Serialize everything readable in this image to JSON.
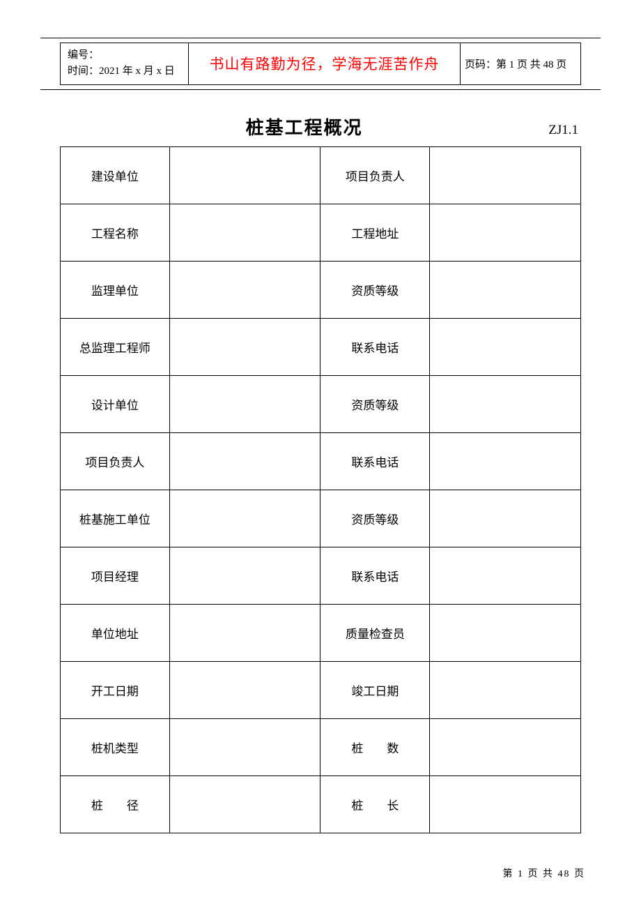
{
  "header": {
    "serial_label": "编号：",
    "time_label": "时间：2021 年 x 月 x 日",
    "motto": "书山有路勤为径，学海无涯苦作舟",
    "page_label": "页码：第 1 页  共 48 页"
  },
  "title": {
    "text": "桩基工程概况",
    "code": "ZJ1.1"
  },
  "table": {
    "rows": [
      {
        "left": "建设单位",
        "right": "项目负责人"
      },
      {
        "left": "工程名称",
        "right": "工程地址"
      },
      {
        "left": "监理单位",
        "right": "资质等级"
      },
      {
        "left": "总监理工程师",
        "right": "联系电话"
      },
      {
        "left": "设计单位",
        "right": "资质等级"
      },
      {
        "left": "项目负责人",
        "right": "联系电话"
      },
      {
        "left": "桩基施工单位",
        "right": "资质等级"
      },
      {
        "left": "项目经理",
        "right": "联系电话"
      },
      {
        "left": "单位地址",
        "right": "质量检查员"
      },
      {
        "left": "开工日期",
        "right": "竣工日期"
      },
      {
        "left": "桩机类型",
        "right": "桩　　数"
      },
      {
        "left": "桩　　径",
        "right": "桩　　长"
      }
    ]
  },
  "footer": {
    "text": "第 1 页 共 48 页"
  },
  "style": {
    "motto_color": "#ff0000",
    "border_color": "#000000",
    "background": "#ffffff",
    "title_fontsize": 26,
    "cell_fontsize": 17,
    "header_fontsize": 15,
    "footer_fontsize": 14
  }
}
